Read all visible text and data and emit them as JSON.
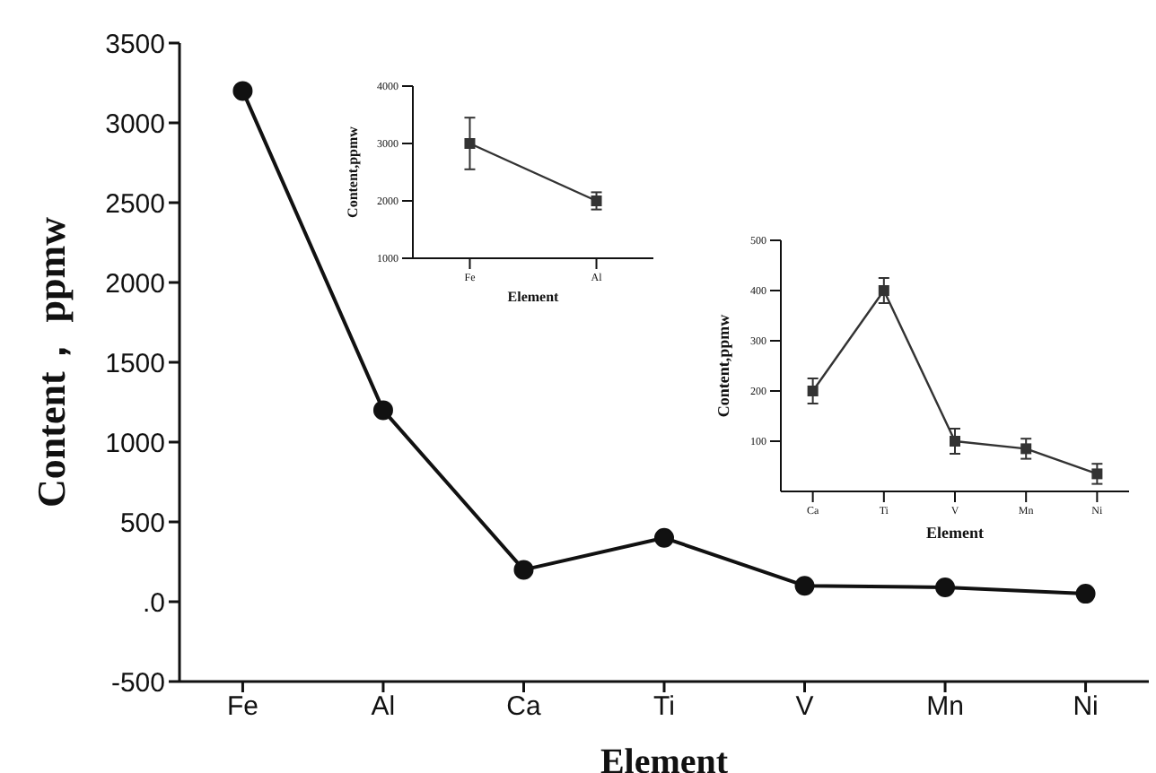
{
  "chart_data": [
    {
      "type": "line",
      "xlabel": "Element",
      "ylabel": "Content， ppmw",
      "categories": [
        "Fe",
        "Al",
        "Ca",
        "Ti",
        "V",
        "Mn",
        "Ni"
      ],
      "series": [
        {
          "color": "#111111",
          "values": [
            3200,
            1200,
            200,
            400,
            100,
            90,
            50
          ]
        }
      ],
      "ylim": [
        -500,
        3500
      ],
      "yticks": [
        -500,
        {
          "value": 0,
          "label": ".0"
        },
        500,
        1000,
        1500,
        2000,
        2500,
        3000,
        3500
      ],
      "marker": "circle",
      "grid": false
    },
    {
      "type": "line",
      "xlabel": "Element",
      "ylabel": "Content,ppmw",
      "categories": [
        "Fe",
        "Al"
      ],
      "series": [
        {
          "color": "#333333",
          "values": [
            3000,
            2000
          ],
          "errors": [
            450,
            150
          ]
        }
      ],
      "ylim": [
        1000,
        4000
      ],
      "yticks": [
        1000,
        2000,
        3000,
        4000
      ],
      "marker": "square",
      "grid": false
    },
    {
      "type": "line",
      "xlabel": "Element",
      "ylabel": "Content,ppmw",
      "categories": [
        "Ca",
        "Ti",
        "V",
        "Mn",
        "Ni"
      ],
      "series": [
        {
          "color": "#333333",
          "values": [
            200,
            400,
            100,
            85,
            35
          ],
          "errors": [
            25,
            25,
            25,
            20,
            20
          ]
        }
      ],
      "ylim": [
        0,
        500
      ],
      "yticks": [
        100,
        200,
        300,
        400,
        500
      ],
      "marker": "square",
      "grid": false
    }
  ]
}
